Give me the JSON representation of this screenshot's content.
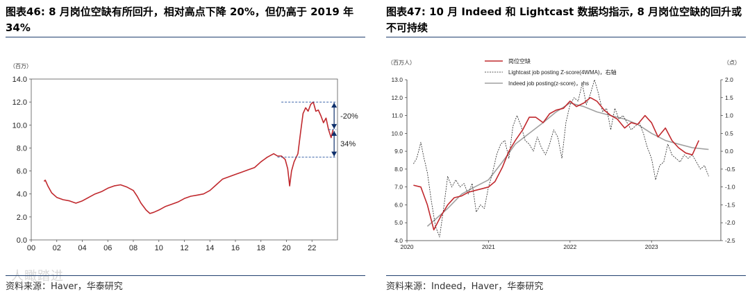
{
  "left": {
    "title": "图表46:  8 月岗位空缺有所回升，相对高点下降 20%，但仍高于 2019 年 34%",
    "source": "资料来源：Haver，华泰研究",
    "watermark": "人瞰踏进",
    "chart_data": {
      "type": "line",
      "unit": "（百万）",
      "ylim": [
        0,
        14
      ],
      "yticks": [
        "0.0",
        "2.0",
        "4.0",
        "6.0",
        "8.0",
        "10.0",
        "12.0",
        "14.0"
      ],
      "xlim": [
        0,
        24
      ],
      "xticks": [
        "00",
        "02",
        "04",
        "06",
        "08",
        "10",
        "12",
        "14",
        "16",
        "18",
        "20",
        "22"
      ],
      "series": [
        {
          "name": "岗位空缺",
          "color": "#c0282d",
          "x": [
            1.0,
            1.1,
            1.3,
            1.6,
            2.0,
            2.5,
            3.0,
            3.5,
            4.0,
            4.5,
            5.0,
            5.5,
            6.0,
            6.5,
            7.0,
            7.5,
            8.0,
            8.3,
            8.6,
            9.0,
            9.3,
            9.6,
            10.0,
            10.5,
            11.0,
            11.5,
            12.0,
            12.5,
            13.0,
            13.5,
            14.0,
            14.5,
            15.0,
            15.5,
            16.0,
            16.5,
            17.0,
            17.5,
            18.0,
            18.5,
            19.0,
            19.3,
            19.6,
            19.9,
            20.1,
            20.25,
            20.4,
            20.6,
            20.9,
            21.1,
            21.3,
            21.5,
            21.7,
            21.9,
            22.1,
            22.3,
            22.5,
            22.7,
            22.9,
            23.1,
            23.3,
            23.5,
            23.65
          ],
          "values": [
            5.1,
            5.2,
            4.7,
            4.1,
            3.7,
            3.5,
            3.4,
            3.2,
            3.4,
            3.7,
            4.0,
            4.2,
            4.5,
            4.7,
            4.8,
            4.6,
            4.3,
            3.8,
            3.2,
            2.6,
            2.3,
            2.4,
            2.6,
            2.9,
            3.1,
            3.3,
            3.6,
            3.8,
            3.9,
            4.0,
            4.3,
            4.8,
            5.3,
            5.5,
            5.7,
            5.9,
            6.1,
            6.3,
            6.8,
            7.2,
            7.5,
            7.3,
            7.3,
            7.0,
            6.2,
            4.7,
            6.0,
            6.8,
            7.5,
            9.3,
            11.0,
            11.5,
            11.2,
            11.8,
            12.0,
            11.2,
            11.3,
            10.8,
            10.2,
            10.6,
            9.6,
            8.9,
            9.6
          ]
        }
      ],
      "annotations": [
        {
          "label": "-20%",
          "from": 12.0,
          "to": 9.6
        },
        {
          "label": "34%",
          "from": 9.6,
          "to": 7.2
        }
      ]
    }
  },
  "right": {
    "title": "图表47:  10 月 Indeed 和 Lightcast 数据均指示, 8 月岗位空缺的回升或不可持续",
    "source": "资料来源：Indeed，Haver，华泰研究",
    "chart_data": {
      "type": "line",
      "left_unit": "（百万人）",
      "right_unit": "（点）",
      "ylim": [
        4.0,
        13.0
      ],
      "yticks": [
        "4.0",
        "5.0",
        "6.0",
        "7.0",
        "8.0",
        "9.0",
        "10.0",
        "11.0",
        "12.0",
        "13.0"
      ],
      "y2lim": [
        -2.5,
        2.0
      ],
      "y2ticks": [
        "-2.5",
        "-2.0",
        "-1.5",
        "-1.0",
        "-0.5",
        "0.0",
        "0.5",
        "1.0",
        "1.5",
        "2.0"
      ],
      "xlim": [
        2020.0,
        2023.85
      ],
      "xticks": [
        "2020",
        "2021",
        "2022",
        "2023"
      ],
      "legend": [
        "岗位空缺",
        "Lightcast job posting Z-score(4WMA)，右轴",
        "Indeed job posting(z-score)，rhs"
      ],
      "series": [
        {
          "name": "岗位空缺",
          "axis": "left",
          "color": "#c0282d",
          "dash": "solid",
          "x": [
            2020.08,
            2020.17,
            2020.25,
            2020.33,
            2020.42,
            2020.5,
            2020.58,
            2020.67,
            2020.75,
            2020.83,
            2020.92,
            2021.0,
            2021.08,
            2021.17,
            2021.25,
            2021.33,
            2021.42,
            2021.5,
            2021.58,
            2021.67,
            2021.75,
            2021.83,
            2021.92,
            2022.0,
            2022.08,
            2022.17,
            2022.25,
            2022.33,
            2022.42,
            2022.5,
            2022.58,
            2022.67,
            2022.75,
            2022.83,
            2022.92,
            2023.0,
            2023.08,
            2023.17,
            2023.25,
            2023.33,
            2023.42,
            2023.5,
            2023.58
          ],
          "values": [
            7.1,
            7.0,
            6.0,
            4.6,
            5.4,
            6.0,
            6.4,
            6.5,
            6.7,
            6.8,
            6.9,
            7.0,
            7.3,
            8.1,
            9.0,
            9.6,
            10.2,
            10.9,
            10.9,
            10.6,
            11.1,
            11.3,
            11.4,
            11.8,
            11.5,
            11.7,
            12.0,
            11.8,
            11.3,
            11.0,
            10.8,
            10.3,
            10.6,
            10.5,
            11.0,
            10.6,
            9.8,
            10.3,
            9.6,
            9.2,
            8.9,
            8.8,
            9.6
          ]
        },
        {
          "name": "Lightcast job posting Z-score(4WMA)，右轴",
          "axis": "right",
          "color": "#222222",
          "dash": "dashed",
          "x": [
            2020.08,
            2020.12,
            2020.17,
            2020.2,
            2020.25,
            2020.3,
            2020.35,
            2020.4,
            2020.45,
            2020.5,
            2020.55,
            2020.6,
            2020.65,
            2020.7,
            2020.75,
            2020.8,
            2020.85,
            2020.9,
            2020.95,
            2021.0,
            2021.05,
            2021.1,
            2021.15,
            2021.2,
            2021.25,
            2021.3,
            2021.35,
            2021.4,
            2021.45,
            2021.5,
            2021.55,
            2021.6,
            2021.65,
            2021.7,
            2021.75,
            2021.8,
            2021.85,
            2021.9,
            2021.95,
            2022.0,
            2022.05,
            2022.1,
            2022.15,
            2022.2,
            2022.25,
            2022.3,
            2022.35,
            2022.4,
            2022.45,
            2022.5,
            2022.55,
            2022.6,
            2022.65,
            2022.7,
            2022.75,
            2022.8,
            2022.85,
            2022.9,
            2022.95,
            2023.0,
            2023.05,
            2023.1,
            2023.15,
            2023.2,
            2023.25,
            2023.3,
            2023.35,
            2023.4,
            2023.45,
            2023.5,
            2023.55,
            2023.6,
            2023.65,
            2023.7
          ],
          "values": [
            -0.35,
            -0.2,
            0.25,
            -0.1,
            -0.6,
            -1.4,
            -2.1,
            -2.4,
            -1.6,
            -0.7,
            -1.0,
            -0.8,
            -1.0,
            -0.9,
            -1.2,
            -0.9,
            -1.7,
            -1.5,
            -1.6,
            -1.0,
            -0.6,
            -0.1,
            0.2,
            0.3,
            -0.2,
            0.7,
            1.0,
            0.7,
            0.3,
            0.2,
            0.0,
            0.4,
            0.1,
            -0.1,
            0.2,
            0.6,
            0.4,
            -0.2,
            0.8,
            1.3,
            1.5,
            1.4,
            1.9,
            1.3,
            1.6,
            2.0,
            1.6,
            1.1,
            1.2,
            0.6,
            1.2,
            0.9,
            1.0,
            0.8,
            0.6,
            0.7,
            0.8,
            0.5,
            0.1,
            -0.2,
            -0.8,
            -0.4,
            -0.3,
            0.2,
            -0.1,
            -0.2,
            -0.3,
            -0.1,
            -0.2,
            -0.1,
            -0.3,
            -0.5,
            -0.4,
            -0.7
          ]
        },
        {
          "name": "Indeed job posting(z-score)，rhs",
          "axis": "right",
          "color": "#a0a0a0",
          "dash": "solid",
          "x": [
            2020.25,
            2020.35,
            2020.5,
            2020.67,
            2020.83,
            2021.0,
            2021.17,
            2021.33,
            2021.5,
            2021.67,
            2021.83,
            2022.0,
            2022.17,
            2022.33,
            2022.5,
            2022.67,
            2022.83,
            2023.0,
            2023.17,
            2023.33,
            2023.5,
            2023.7
          ],
          "values": [
            -2.1,
            -1.9,
            -1.6,
            -1.2,
            -1.0,
            -0.8,
            -0.3,
            0.2,
            0.5,
            0.8,
            1.1,
            1.35,
            1.25,
            1.1,
            1.0,
            0.9,
            0.75,
            0.5,
            0.3,
            0.2,
            0.1,
            0.05
          ]
        }
      ]
    }
  }
}
